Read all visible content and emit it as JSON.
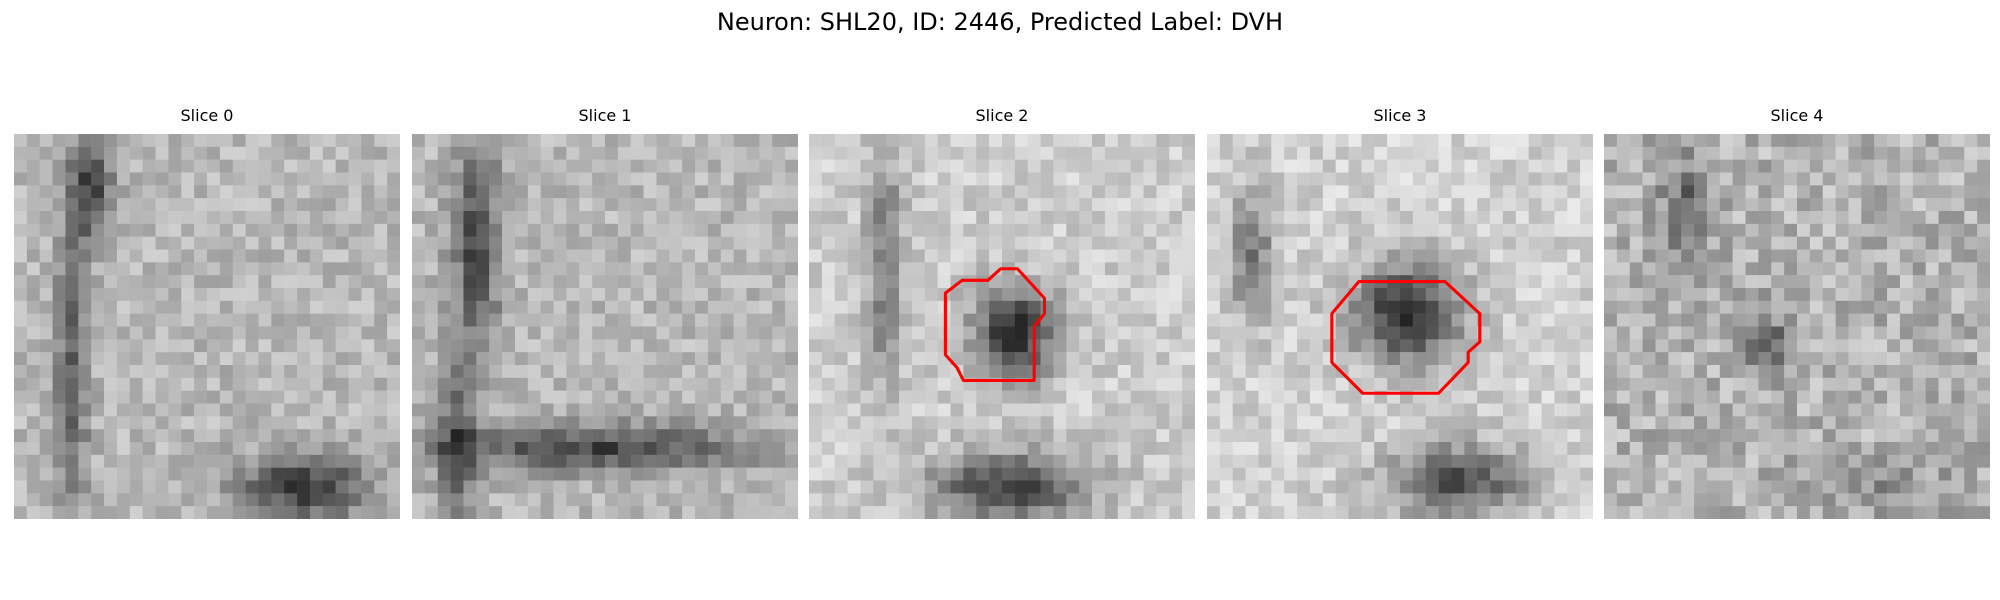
{
  "figure": {
    "title": "Neuron: SHL20, ID: 2446, Predicted Label: DVH"
  },
  "colors": {
    "contour": "#ff0000",
    "colormap": "gray"
  },
  "slices": [
    {
      "title": "Slice 0",
      "index": 0,
      "has_contour": false
    },
    {
      "title": "Slice 1",
      "index": 1,
      "has_contour": false
    },
    {
      "title": "Slice 2",
      "index": 2,
      "has_contour": true
    },
    {
      "title": "Slice 3",
      "index": 3,
      "has_contour": true
    },
    {
      "title": "Slice 4",
      "index": 4,
      "has_contour": false
    }
  ]
}
